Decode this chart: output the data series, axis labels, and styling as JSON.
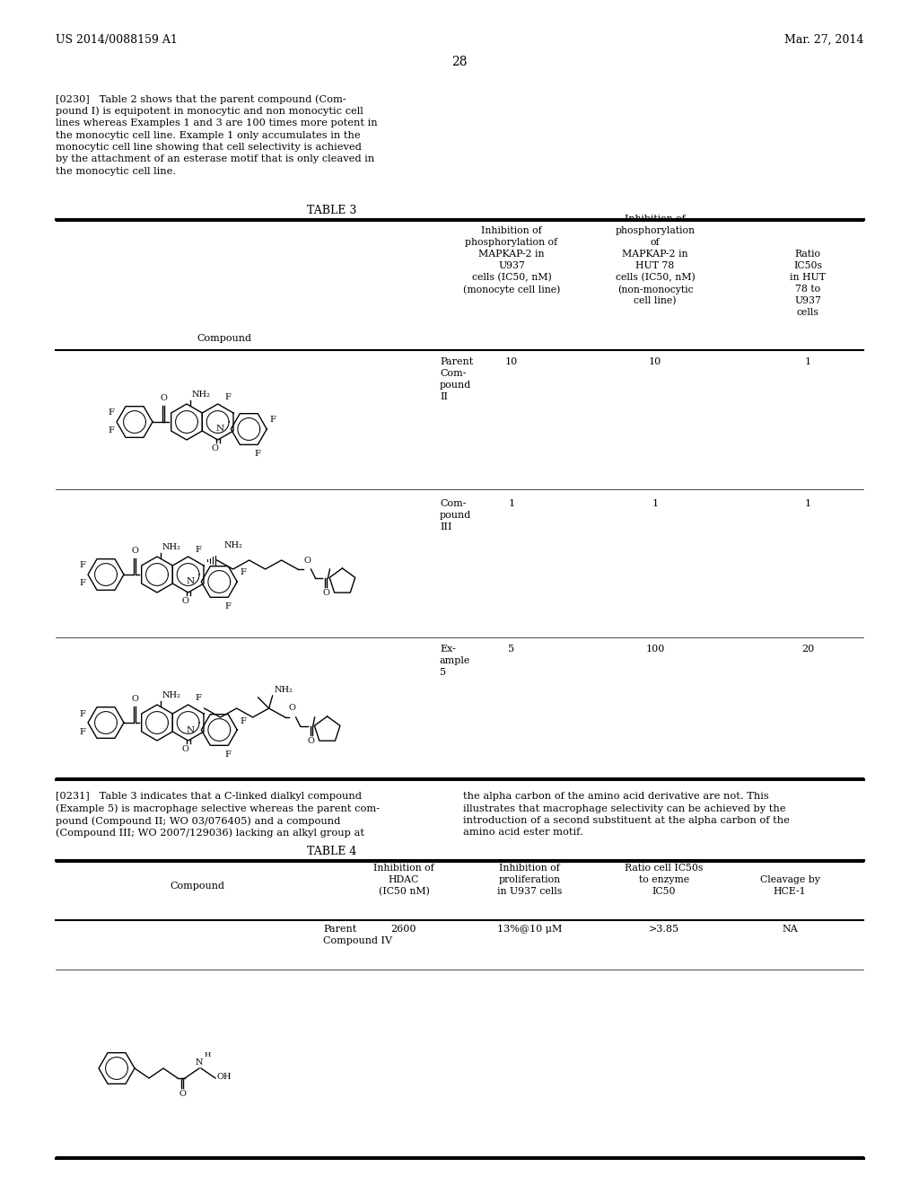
{
  "bg_color": "#ffffff",
  "header_left": "US 2014/0088159 A1",
  "header_right": "Mar. 27, 2014",
  "page_number": "28",
  "lines_0230": [
    "[0230]   Table 2 shows that the parent compound (Com-",
    "pound I) is equipotent in monocytic and non monocytic cell",
    "lines whereas Examples 1 and 3 are 100 times more potent in",
    "the monocytic cell line. Example 1 only accumulates in the",
    "monocytic cell line showing that cell selectivity is achieved",
    "by the attachment of an esterase motif that is only cleaved in",
    "the monocytic cell line."
  ],
  "table3_title": "TABLE 3",
  "col2_header": [
    "Inhibition of",
    "phosphorylation of",
    "MAPKAP-2 in",
    "U937",
    "cells (IC50, nM)",
    "(monocyte cell line)"
  ],
  "col3_header": [
    "Inhibition of",
    "phosphorylation",
    "of",
    "MAPKAP-2 in",
    "HUT 78",
    "cells (IC50, nM)",
    "(non-monocytic",
    "cell line)"
  ],
  "col4_header": [
    "Ratio",
    "IC50s",
    "in HUT",
    "78 to",
    "U937",
    "cells"
  ],
  "row1_label": [
    "Parent",
    "Com-",
    "pound",
    "II"
  ],
  "row1_data": [
    "10",
    "10",
    "1"
  ],
  "row2_label": [
    "Com-",
    "pound",
    "III"
  ],
  "row2_data": [
    "1",
    "1",
    "1"
  ],
  "row3_label": [
    "Ex-",
    "ample",
    "5"
  ],
  "row3_data": [
    "5",
    "100",
    "20"
  ],
  "lines_0231_left": [
    "[0231]   Table 3 indicates that a C-linked dialkyl compound",
    "(Example 5) is macrophage selective whereas the parent com-",
    "pound (Compound II; WO 03/076405) and a compound",
    "(Compound III; WO 2007/129036) lacking an alkyl group at"
  ],
  "lines_0231_right": [
    "the alpha carbon of the amino acid derivative are not. This",
    "illustrates that macrophage selectivity can be achieved by the",
    "introduction of a second substituent at the alpha carbon of the",
    "amino acid ester motif."
  ],
  "table4_title": "TABLE 4",
  "t4h2": [
    "Inhibition of",
    "HDAC",
    "(IC50 nM)"
  ],
  "t4h3": [
    "Inhibition of",
    "proliferation",
    "in U937 cells"
  ],
  "t4h4": [
    "Ratio cell IC50s",
    "to enzyme",
    "IC50"
  ],
  "t4h5": [
    "Cleavage by",
    "HCE-1"
  ],
  "t4_row1_label": [
    "Parent",
    "Compound IV"
  ],
  "t4_row1_data": [
    "2600",
    "13%@10 μM",
    ">3.85",
    "NA"
  ]
}
